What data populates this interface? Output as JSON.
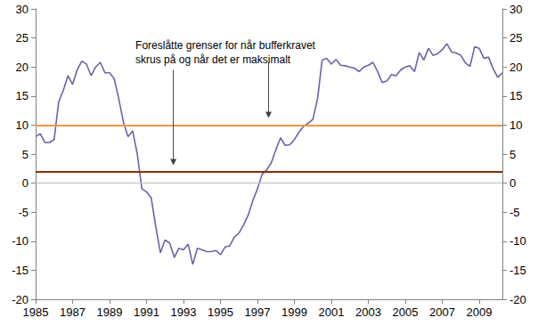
{
  "chart_data": {
    "type": "line",
    "x": [
      1985,
      1985.25,
      1985.5,
      1985.75,
      1986,
      1986.25,
      1986.5,
      1986.75,
      1987,
      1987.25,
      1987.5,
      1987.75,
      1988,
      1988.25,
      1988.5,
      1988.75,
      1989,
      1989.25,
      1989.5,
      1989.75,
      1990,
      1990.25,
      1990.5,
      1990.75,
      1991,
      1991.25,
      1991.5,
      1991.75,
      1992,
      1992.25,
      1992.5,
      1992.75,
      1993,
      1993.25,
      1993.5,
      1993.75,
      1994,
      1994.25,
      1994.5,
      1994.75,
      1995,
      1995.25,
      1995.5,
      1995.75,
      1996,
      1996.25,
      1996.5,
      1996.75,
      1997,
      1997.25,
      1997.5,
      1997.75,
      1998,
      1998.25,
      1998.5,
      1998.75,
      1999,
      1999.25,
      1999.5,
      1999.75,
      2000,
      2000.25,
      2000.5,
      2000.75,
      2001,
      2001.25,
      2001.5,
      2001.75,
      2002,
      2002.25,
      2002.5,
      2002.75,
      2003,
      2003.25,
      2003.5,
      2003.75,
      2004,
      2004.25,
      2004.5,
      2004.75,
      2005,
      2005.25,
      2005.5,
      2005.75,
      2006,
      2006.25,
      2006.5,
      2006.75,
      2007,
      2007.25,
      2007.5,
      2007.75,
      2008,
      2008.25,
      2008.5,
      2008.75,
      2009,
      2009.25,
      2009.5,
      2009.75,
      2010,
      2010.25
    ],
    "values": [
      8,
      8.5,
      7,
      7,
      7.5,
      14,
      16,
      18.5,
      17,
      19.5,
      21,
      20.5,
      18.5,
      20,
      20.8,
      19,
      19,
      18,
      14.5,
      10.5,
      8,
      9,
      5,
      -1,
      -1.5,
      -2.5,
      -7.5,
      -12,
      -9.8,
      -10.3,
      -12.8,
      -11.2,
      -11.5,
      -10.5,
      -14,
      -11.2,
      -11.5,
      -11.8,
      -11.8,
      -11.6,
      -12.3,
      -11,
      -10.8,
      -9.3,
      -8.6,
      -7.2,
      -5.5,
      -3,
      -1,
      1.5,
      2.3,
      3.5,
      5.8,
      7.8,
      6.5,
      6.6,
      7.5,
      8.8,
      9.8,
      10.3,
      11,
      14.5,
      21.2,
      21.5,
      20.5,
      21.3,
      20.3,
      20.2,
      20,
      19.8,
      19.2,
      20,
      20.3,
      20.8,
      19.2,
      17.3,
      17.6,
      18.7,
      18.5,
      19.5,
      20,
      20.2,
      19.2,
      22.5,
      21.2,
      23.2,
      22,
      22.3,
      23,
      24,
      22.6,
      22.4,
      22,
      20.7,
      20.1,
      23.5,
      23.2,
      21.5,
      21.7,
      19.7,
      18.2,
      19
    ],
    "color": "#6b63a8",
    "xlim": [
      1985,
      2010.25
    ],
    "xticks": [
      1985,
      1987,
      1989,
      1991,
      1993,
      1995,
      1997,
      1999,
      2001,
      2003,
      2005,
      2007,
      2009
    ],
    "ylim": [
      -20,
      30
    ],
    "yticks": [
      -20,
      -15,
      -10,
      -5,
      0,
      5,
      10,
      15,
      20,
      25,
      30
    ],
    "y2lim": [
      -20,
      30
    ],
    "y2ticks": [
      -20,
      -15,
      -10,
      -5,
      0,
      5,
      10,
      15,
      20,
      25,
      30
    ],
    "grid": false,
    "lines": [
      {
        "y": 0,
        "color": "#bfbfbf"
      },
      {
        "y": 10,
        "color": "#f79646"
      },
      {
        "y": 2,
        "color": "#8b2c0a"
      }
    ],
    "annotation": {
      "text": [
        "Foreslåtte grenser for når bufferkravet",
        "skrus på og når det er maksimalt"
      ],
      "x": 1990.4,
      "y": 25,
      "arrows": [
        {
          "from": [
            1992.45,
            19.5
          ],
          "to": [
            1992.45,
            3.1
          ]
        },
        {
          "from": [
            1997.6,
            20.8
          ],
          "to": [
            1997.6,
            11.2
          ]
        }
      ]
    }
  }
}
